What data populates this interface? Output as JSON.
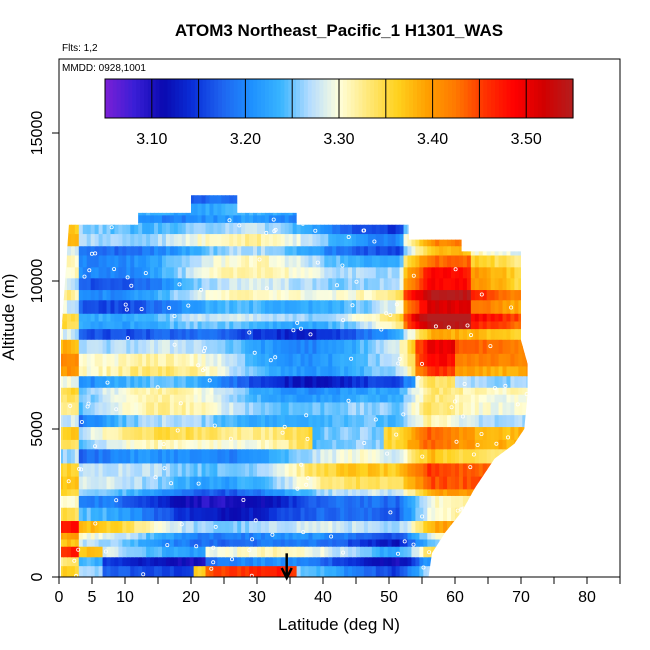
{
  "chart_data": {
    "type": "heatmap",
    "title": "ATOM3 Northeast_Pacific_1 H1301_WAS",
    "flights_label": "Flts: 1,2",
    "dates_label": "MMDD: 0928,1001",
    "xlabel": "Latitude (deg N)",
    "ylabel": "Altitude (m)",
    "xlim": [
      0,
      85
    ],
    "ylim": [
      0,
      17500
    ],
    "x_ticks": [
      0,
      5,
      10,
      20,
      30,
      40,
      50,
      60,
      70,
      80
    ],
    "x_tick_labels": [
      "0",
      "5",
      "10",
      "20",
      "30",
      "40",
      "50",
      "60",
      "70",
      "80"
    ],
    "y_ticks": [
      0,
      5000,
      10000,
      15000
    ],
    "y_tick_labels": [
      "0",
      "5000",
      "10000",
      "15000"
    ],
    "colorbar": {
      "min": 3.05,
      "max": 3.55,
      "tick_values": [
        3.1,
        3.2,
        3.3,
        3.4,
        3.5
      ],
      "tick_labels": [
        "3.10",
        "3.20",
        "3.30",
        "3.40",
        "3.50"
      ],
      "colors": [
        "#7b1fd6",
        "#3a1ed6",
        "#0a0ab0",
        "#0a2fd8",
        "#1e64f0",
        "#1e90ff",
        "#38b4ff",
        "#b4dcff",
        "#ffffdc",
        "#ffe878",
        "#ffd21e",
        "#ffa000",
        "#ff7800",
        "#ff3200",
        "#ff0000",
        "#d20000",
        "#b41e1e"
      ]
    },
    "annotation": {
      "type": "arrow-down",
      "latitude": 34.5,
      "altitude_top": 800,
      "altitude_bottom": 0
    },
    "field_samples": [
      {
        "lat": 10,
        "alt": 500,
        "value": 3.17
      },
      {
        "lat": 30,
        "alt": 200,
        "value": 3.47
      },
      {
        "lat": 58,
        "alt": 2500,
        "value": 3.42
      },
      {
        "lat": 58,
        "alt": 10000,
        "value": 3.52
      },
      {
        "lat": 30,
        "alt": 8000,
        "value": 3.25
      },
      {
        "lat": 42,
        "alt": 4500,
        "value": 3.12
      }
    ]
  }
}
